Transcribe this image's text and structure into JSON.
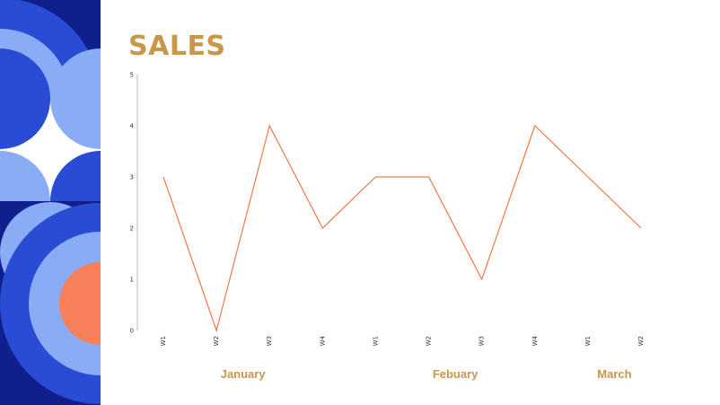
{
  "title": "SALES",
  "colors": {
    "title": "#C9964A",
    "line": "#F0784A",
    "month_label": "#C9964A",
    "axis": "#BBBBBB",
    "deco_navy": "#0F1F8E",
    "deco_blue": "#2A4BD3",
    "deco_light": "#8AACF5",
    "deco_orange": "#F8805A",
    "deco_white": "#FFFFFF"
  },
  "chart_data": {
    "type": "line",
    "categories": [
      "W1",
      "W2",
      "W3",
      "W4",
      "W1",
      "W2",
      "W3",
      "W4",
      "W1",
      "W2"
    ],
    "series": [
      {
        "values": [
          3,
          0,
          4,
          2,
          3,
          3,
          1,
          4,
          3,
          2
        ]
      }
    ],
    "groups": [
      {
        "label": "January",
        "start": 0,
        "end": 3
      },
      {
        "label": "Febuary",
        "start": 4,
        "end": 7
      },
      {
        "label": "March",
        "start": 8,
        "end": 9
      }
    ],
    "yticks": [
      0,
      1,
      2,
      3,
      4,
      5
    ],
    "ylim": [
      0,
      5
    ],
    "grid": false,
    "legend": "none"
  }
}
